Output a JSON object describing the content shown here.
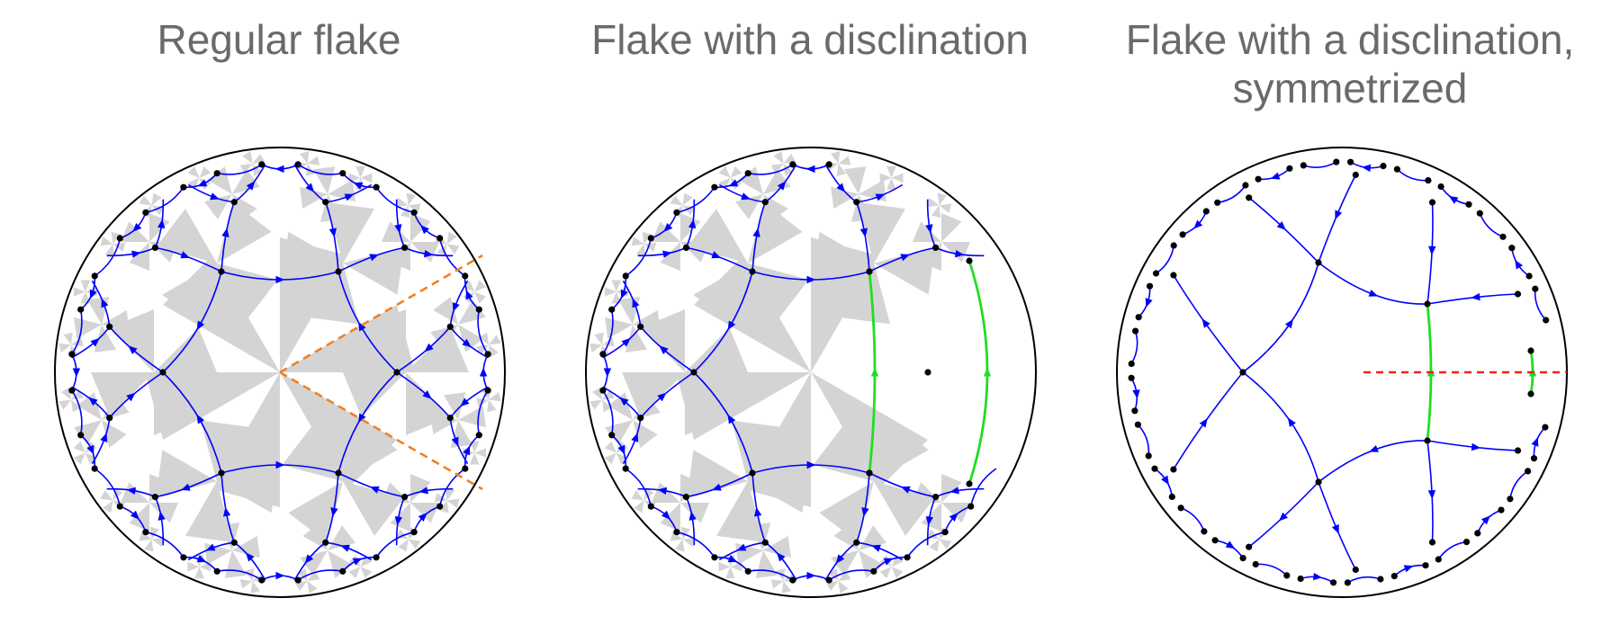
{
  "panels": [
    {
      "title": "Regular flake"
    },
    {
      "title": "Flake with a disclination"
    },
    {
      "title": "Flake with a disclination,\nsymmetrized"
    }
  ],
  "colors": {
    "title": "#6a6a6a",
    "disk_boundary": "#000000",
    "edges": "#0000ff",
    "arrows": "#0000ff",
    "vertices": "#000000",
    "shading": "#d4d4d4",
    "wedge_cut": "#f08020",
    "disclination_edges": "#22dd22",
    "mirror_line": "#ff1a1a"
  }
}
